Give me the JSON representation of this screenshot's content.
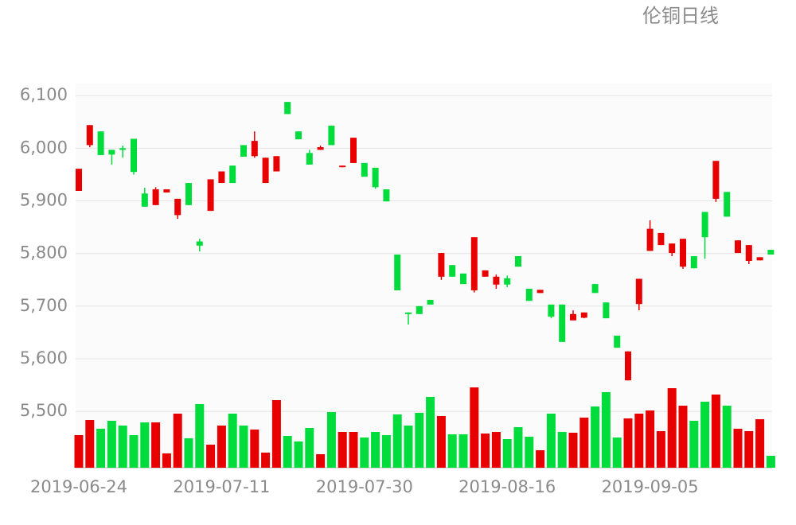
{
  "chart_data": {
    "type": "candlestick",
    "title": "伦铜日线",
    "categories": [
      "2019-06-24",
      null,
      null,
      null,
      null,
      null,
      null,
      null,
      null,
      null,
      null,
      null,
      null,
      "2019-07-11",
      null,
      null,
      null,
      null,
      null,
      null,
      null,
      null,
      null,
      null,
      null,
      null,
      "2019-07-30",
      null,
      null,
      null,
      null,
      null,
      null,
      null,
      null,
      null,
      null,
      null,
      null,
      "2019-08-16",
      null,
      null,
      null,
      null,
      null,
      null,
      null,
      null,
      null,
      null,
      null,
      null,
      "2019-09-05",
      null,
      null,
      null,
      null,
      null,
      null,
      null,
      null,
      null,
      null,
      null
    ],
    "open": [
      5919,
      6006,
      6032,
      5997,
      6000,
      6018,
      5914,
      5892,
      5916,
      5873,
      5934,
      5823,
      5881,
      5934,
      5967,
      6006,
      5985,
      5934,
      5956,
      6088,
      6032,
      5991,
      5997,
      6043,
      5964,
      5972,
      5972,
      5963,
      5922,
      5798,
      5688,
      5700,
      5712,
      5756,
      5778,
      5762,
      5730,
      5756,
      5741,
      5753,
      5795,
      5733,
      5725,
      5703,
      5703,
      5673,
      5678,
      5742,
      5707,
      5644,
      5559,
      5704,
      5805,
      5816,
      5801,
      5775,
      5795,
      5879,
      5904,
      5917,
      5801,
      5786,
      5787,
      5807
    ],
    "high": [
      5961,
      6044,
      6032,
      5997,
      6005,
      6018,
      5925,
      5926,
      5922,
      5904,
      5934,
      5828,
      5941,
      5956,
      5967,
      6006,
      6032,
      5982,
      5985,
      6088,
      6032,
      5997,
      6005,
      6043,
      5967,
      6020,
      5972,
      5963,
      5922,
      5798,
      5688,
      5700,
      5712,
      5801,
      5778,
      5762,
      5831,
      5768,
      5760,
      5758,
      5795,
      5733,
      5731,
      5703,
      5703,
      5692,
      5688,
      5742,
      5707,
      5644,
      5614,
      5752,
      5863,
      5839,
      5819,
      5828,
      5795,
      5879,
      5976,
      5917,
      5825,
      5816,
      5793,
      5807
    ],
    "low": [
      5919,
      6002,
      5987,
      5969,
      5982,
      5950,
      5889,
      5892,
      5916,
      5866,
      5892,
      5804,
      5881,
      5934,
      5934,
      5984,
      5982,
      5934,
      5956,
      6065,
      6017,
      5969,
      5997,
      6006,
      5964,
      5972,
      5946,
      5923,
      5899,
      5730,
      5665,
      5685,
      5703,
      5750,
      5756,
      5742,
      5726,
      5756,
      5733,
      5736,
      5775,
      5710,
      5725,
      5677,
      5632,
      5673,
      5677,
      5725,
      5677,
      5621,
      5559,
      5692,
      5805,
      5816,
      5795,
      5771,
      5772,
      5790,
      5898,
      5870,
      5801,
      5780,
      5787,
      5798
    ],
    "close": [
      5961,
      6044,
      5987,
      5988,
      5997,
      5955,
      5889,
      5922,
      5922,
      5904,
      5892,
      5815,
      5941,
      5956,
      5934,
      5984,
      6014,
      5982,
      5985,
      6065,
      6017,
      5969,
      6002,
      6006,
      5967,
      6020,
      5946,
      5926,
      5899,
      5730,
      5685,
      5685,
      5703,
      5801,
      5756,
      5742,
      5831,
      5768,
      5756,
      5741,
      5775,
      5710,
      5731,
      5680,
      5632,
      5685,
      5688,
      5725,
      5677,
      5621,
      5614,
      5752,
      5847,
      5839,
      5819,
      5828,
      5772,
      5831,
      5976,
      5870,
      5825,
      5816,
      5793,
      5798
    ],
    "volume": [
      41,
      60,
      49,
      59,
      53,
      41,
      57,
      57,
      18,
      68,
      37,
      80,
      29,
      53,
      68,
      53,
      48,
      19,
      85,
      40,
      33,
      50,
      17,
      70,
      45,
      45,
      38,
      45,
      41,
      67,
      53,
      69,
      89,
      65,
      42,
      42,
      101,
      43,
      45,
      36,
      51,
      39,
      22,
      68,
      45,
      44,
      63,
      77,
      95,
      38,
      62,
      68,
      72,
      46,
      100,
      78,
      59,
      83,
      92,
      78,
      49,
      46,
      61,
      15
    ],
    "vlim": [
      0,
      110
    ],
    "up_color": "#e80000",
    "down_color": "#00dc3c",
    "ylim": [
      5393,
      6123
    ],
    "yticks": [
      {
        "value": 5500,
        "label": "5,500"
      },
      {
        "value": 5600,
        "label": "5,600"
      },
      {
        "value": 5700,
        "label": "5,700"
      },
      {
        "value": 5800,
        "label": "5,800"
      },
      {
        "value": 5900,
        "label": "5,900"
      },
      {
        "value": 6000,
        "label": "6,000"
      },
      {
        "value": 6100,
        "label": "6,100"
      }
    ],
    "grid": true
  }
}
